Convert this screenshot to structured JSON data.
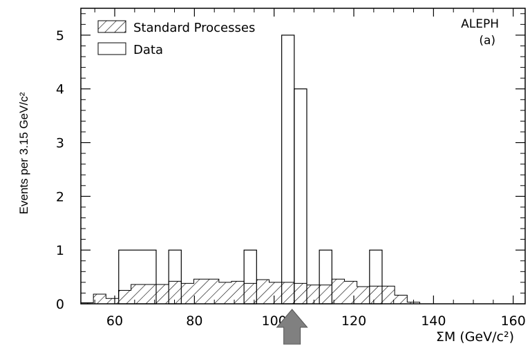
{
  "chart_data": {
    "type": "bar",
    "ylabel": "Events per 3.15 GeV/c²",
    "xlabel": "ΣM (GeV/c²)",
    "annotation": [
      "ALEPH",
      "(a)"
    ],
    "xlim": [
      51.5,
      163
    ],
    "ylim": [
      0,
      5.5
    ],
    "x_ticks": [
      60,
      80,
      100,
      120,
      140,
      160
    ],
    "x_tick_labels": [
      "60",
      "80",
      "100",
      "120",
      "140",
      "160"
    ],
    "y_ticks": [
      0,
      1,
      2,
      3,
      4,
      5
    ],
    "y_tick_labels": [
      "0",
      "1",
      "2",
      "3",
      "4",
      "5"
    ],
    "bin_width": 3.15,
    "legend": {
      "position": "top-left",
      "entries": [
        {
          "label": "Standard Processes",
          "style": "hatched"
        },
        {
          "label": "Data",
          "style": "open"
        }
      ]
    },
    "series": [
      {
        "name": "Standard Processes",
        "style": "hatched",
        "bins": [
          {
            "x0": 51.5,
            "x1": 54.65,
            "y": 0.02
          },
          {
            "x0": 54.65,
            "x1": 57.8,
            "y": 0.18
          },
          {
            "x0": 57.8,
            "x1": 60.95,
            "y": 0.1
          },
          {
            "x0": 60.95,
            "x1": 64.1,
            "y": 0.25
          },
          {
            "x0": 64.1,
            "x1": 67.25,
            "y": 0.36
          },
          {
            "x0": 67.25,
            "x1": 70.4,
            "y": 0.36
          },
          {
            "x0": 70.4,
            "x1": 73.55,
            "y": 0.36
          },
          {
            "x0": 73.55,
            "x1": 76.7,
            "y": 0.42
          },
          {
            "x0": 76.7,
            "x1": 79.85,
            "y": 0.38
          },
          {
            "x0": 79.85,
            "x1": 83.0,
            "y": 0.46
          },
          {
            "x0": 83.0,
            "x1": 86.15,
            "y": 0.46
          },
          {
            "x0": 86.15,
            "x1": 89.3,
            "y": 0.4
          },
          {
            "x0": 89.3,
            "x1": 92.45,
            "y": 0.42
          },
          {
            "x0": 92.45,
            "x1": 95.6,
            "y": 0.38
          },
          {
            "x0": 95.6,
            "x1": 98.75,
            "y": 0.45
          },
          {
            "x0": 98.75,
            "x1": 101.9,
            "y": 0.4
          },
          {
            "x0": 101.9,
            "x1": 105.05,
            "y": 0.4
          },
          {
            "x0": 105.05,
            "x1": 108.2,
            "y": 0.38
          },
          {
            "x0": 108.2,
            "x1": 111.35,
            "y": 0.35
          },
          {
            "x0": 111.35,
            "x1": 114.5,
            "y": 0.35
          },
          {
            "x0": 114.5,
            "x1": 117.65,
            "y": 0.46
          },
          {
            "x0": 117.65,
            "x1": 120.8,
            "y": 0.42
          },
          {
            "x0": 120.8,
            "x1": 123.95,
            "y": 0.32
          },
          {
            "x0": 123.95,
            "x1": 127.1,
            "y": 0.33
          },
          {
            "x0": 127.1,
            "x1": 130.25,
            "y": 0.33
          },
          {
            "x0": 130.25,
            "x1": 133.4,
            "y": 0.16
          },
          {
            "x0": 133.4,
            "x1": 136.55,
            "y": 0.03
          }
        ]
      },
      {
        "name": "Data",
        "style": "open",
        "bins": [
          {
            "x0": 61.0,
            "x1": 70.4,
            "y": 1
          },
          {
            "x0": 73.55,
            "x1": 76.7,
            "y": 1
          },
          {
            "x0": 92.45,
            "x1": 95.6,
            "y": 1
          },
          {
            "x0": 101.9,
            "x1": 105.05,
            "y": 5
          },
          {
            "x0": 105.05,
            "x1": 108.2,
            "y": 4
          },
          {
            "x0": 111.35,
            "x1": 114.5,
            "y": 1
          },
          {
            "x0": 123.95,
            "x1": 127.1,
            "y": 1
          }
        ]
      }
    ],
    "pointer": {
      "shape": "up-arrow",
      "x": 104.5,
      "color": "#808080"
    }
  }
}
